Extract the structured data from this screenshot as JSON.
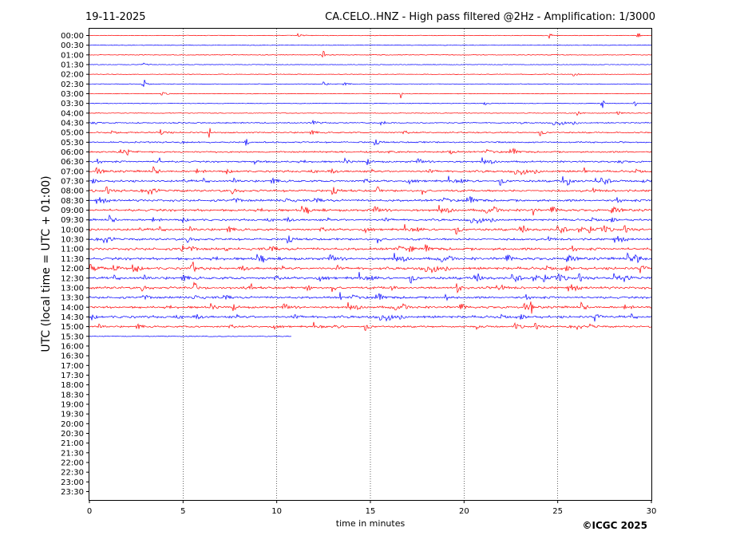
{
  "header": {
    "date": "19-11-2025",
    "title": "CA.CELO..HNZ - High pass filtered @2Hz - Amplification: 1/3000"
  },
  "footer": {
    "copyright": "©ICGC 2025"
  },
  "colors": {
    "trace_a": "#ff0000",
    "trace_b": "#0000ff",
    "gridline": "#000000",
    "axis": "#000000"
  },
  "chart_data": {
    "type": "line",
    "title": "CA.CELO..HNZ - High pass filtered @2Hz - Amplification: 1/3000",
    "xlabel": "time in minutes",
    "ylabel": "UTC (local time = UTC + 01:00)",
    "xlim": [
      0,
      30
    ],
    "x_ticks": [
      0,
      5,
      10,
      15,
      20,
      25,
      30
    ],
    "x_gridlines": [
      5,
      10,
      15,
      20,
      25
    ],
    "row_labels": [
      "00:00",
      "00:30",
      "01:00",
      "01:30",
      "02:00",
      "02:30",
      "03:00",
      "03:30",
      "04:00",
      "04:30",
      "05:00",
      "05:30",
      "06:00",
      "06:30",
      "07:00",
      "07:30",
      "08:00",
      "08:30",
      "09:00",
      "09:30",
      "10:00",
      "10:30",
      "11:00",
      "11:30",
      "12:00",
      "12:30",
      "13:00",
      "13:30",
      "14:00",
      "14:30",
      "15:00",
      "15:30",
      "16:00",
      "16:30",
      "17:00",
      "17:30",
      "18:00",
      "18:30",
      "19:00",
      "19:30",
      "20:00",
      "20:30",
      "21:00",
      "21:30",
      "22:00",
      "22:30",
      "23:00",
      "23:30"
    ],
    "trace_color_pattern": [
      "trace_a",
      "trace_b"
    ],
    "rows_recorded": 32,
    "last_row_end_minute": 10.8,
    "activity": [
      0.05,
      0.03,
      0.05,
      0.03,
      0.03,
      0.04,
      0.04,
      0.04,
      0.05,
      0.25,
      0.3,
      0.35,
      0.4,
      0.45,
      0.55,
      0.55,
      0.6,
      0.6,
      0.65,
      0.55,
      0.6,
      0.6,
      0.7,
      0.75,
      0.75,
      0.7,
      0.65,
      0.6,
      0.6,
      0.7,
      0.45,
      0.08
    ],
    "events": [
      {
        "row": 0,
        "minute": 24.6
      },
      {
        "row": 0,
        "minute": 29.3
      },
      {
        "row": 2,
        "minute": 12.5
      },
      {
        "row": 5,
        "minute": 2.9
      },
      {
        "row": 6,
        "minute": 16.6
      },
      {
        "row": 7,
        "minute": 27.4
      },
      {
        "row": 7,
        "minute": 29.1
      },
      {
        "row": 10,
        "minute": 6.4
      },
      {
        "row": 11,
        "minute": 8.4
      },
      {
        "row": 13,
        "minute": 3.7
      },
      {
        "row": 14,
        "minute": 26.4
      },
      {
        "row": 15,
        "minute": 25.3
      },
      {
        "row": 16,
        "minute": 15.4
      },
      {
        "row": 18,
        "minute": 23.7
      },
      {
        "row": 22,
        "minute": 5.0
      },
      {
        "row": 24,
        "minute": 5.5
      },
      {
        "row": 26,
        "minute": 8.6
      },
      {
        "row": 26,
        "minute": 11.7
      },
      {
        "row": 27,
        "minute": 13.4
      },
      {
        "row": 27,
        "minute": 19.0
      },
      {
        "row": 28,
        "minute": 23.6
      }
    ]
  }
}
